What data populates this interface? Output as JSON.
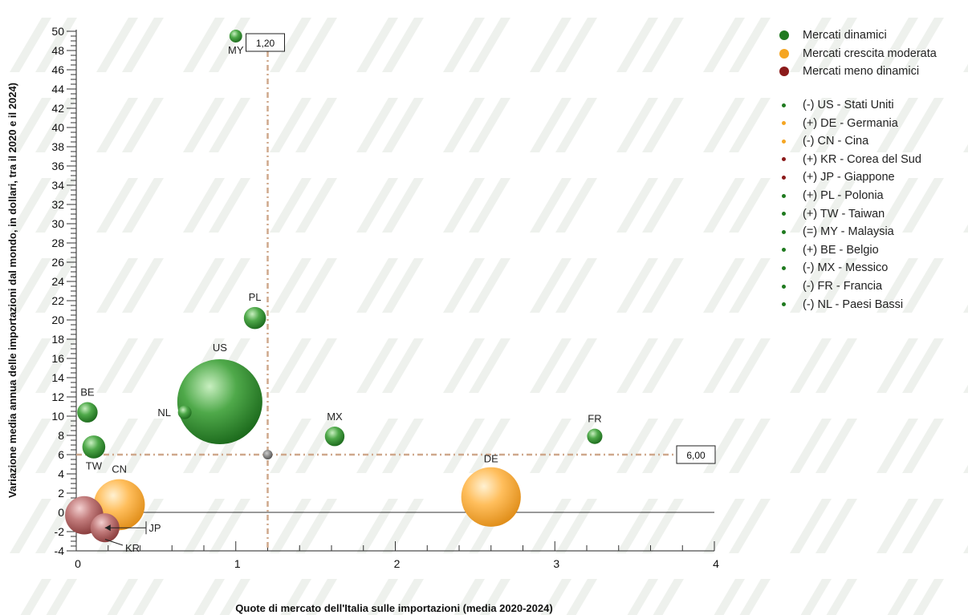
{
  "chart_data": {
    "type": "scatter",
    "subtype": "bubble",
    "xlabel": "Quote di mercato dell'Italia sulle importazioni (media 2020-2024)",
    "ylabel": "Variazione media annua delle importazioni dal mondo, in dollari, tra il 2020 e il 2024)",
    "xlim": [
      0,
      4
    ],
    "ylim": [
      -4,
      50
    ],
    "x_ticks": [
      "0",
      "1",
      "2",
      "3",
      "4"
    ],
    "y_ticks": [
      "-4",
      "-2",
      "0",
      "2",
      "4",
      "6",
      "8",
      "10",
      "12",
      "14",
      "16",
      "18",
      "20",
      "22",
      "24",
      "26",
      "28",
      "30",
      "32",
      "34",
      "36",
      "38",
      "40",
      "42",
      "44",
      "46",
      "48",
      "50"
    ],
    "reference_lines": [
      {
        "axis": "x",
        "value": 1.2,
        "label": "1,20"
      },
      {
        "axis": "y",
        "value": 6.0,
        "label": "6,00"
      }
    ],
    "groups": [
      {
        "name": "Mercati dinamici",
        "color": "#1f7a1f"
      },
      {
        "name": "Mercati crescita moderata",
        "color": "#f5a623"
      },
      {
        "name": "Mercati meno dinamici",
        "color": "#8b1a1a"
      }
    ],
    "points": [
      {
        "code": "US",
        "x": 0.9,
        "y": 11.5,
        "size": 1.0,
        "group": 0
      },
      {
        "code": "DE",
        "x": 2.6,
        "y": 1.6,
        "size": 0.7,
        "group": 1
      },
      {
        "code": "CN",
        "x": 0.27,
        "y": 0.8,
        "size": 0.6,
        "group": 1
      },
      {
        "code": "KR",
        "x": 0.05,
        "y": -0.3,
        "size": 0.45,
        "group": 2
      },
      {
        "code": "JP",
        "x": 0.18,
        "y": -1.6,
        "size": 0.34,
        "group": 2
      },
      {
        "code": "PL",
        "x": 1.12,
        "y": 20.2,
        "size": 0.26,
        "group": 0
      },
      {
        "code": "TW",
        "x": 0.11,
        "y": 6.8,
        "size": 0.27,
        "group": 0
      },
      {
        "code": "MY",
        "x": 1.0,
        "y": 49.5,
        "size": 0.15,
        "group": 0
      },
      {
        "code": "BE",
        "x": 0.07,
        "y": 10.4,
        "size": 0.24,
        "group": 0
      },
      {
        "code": "MX",
        "x": 1.62,
        "y": 7.9,
        "size": 0.23,
        "group": 0
      },
      {
        "code": "FR",
        "x": 3.25,
        "y": 7.9,
        "size": 0.18,
        "group": 0
      },
      {
        "code": "NL",
        "x": 0.68,
        "y": 10.4,
        "size": 0.16,
        "group": 0
      }
    ],
    "legend_items": [
      {
        "label": "(-) US - Stati Uniti",
        "color": "#1f7a1f"
      },
      {
        "label": "(+) DE - Germania",
        "color": "#f5a623"
      },
      {
        "label": "(-) CN - Cina",
        "color": "#f5a623"
      },
      {
        "label": "(+) KR - Corea del Sud",
        "color": "#8b1a1a"
      },
      {
        "label": "(+) JP - Giappone",
        "color": "#8b1a1a"
      },
      {
        "label": "(+) PL - Polonia",
        "color": "#1f7a1f"
      },
      {
        "label": "(+) TW - Taiwan",
        "color": "#1f7a1f"
      },
      {
        "label": "(=) MY - Malaysia",
        "color": "#1f7a1f"
      },
      {
        "label": "(+) BE - Belgio",
        "color": "#1f7a1f"
      },
      {
        "label": "(-) MX - Messico",
        "color": "#1f7a1f"
      },
      {
        "label": "(-) FR - Francia",
        "color": "#1f7a1f"
      },
      {
        "label": "(-) NL - Paesi Bassi",
        "color": "#1f7a1f"
      }
    ],
    "legend_placement": "right",
    "grid": false
  }
}
